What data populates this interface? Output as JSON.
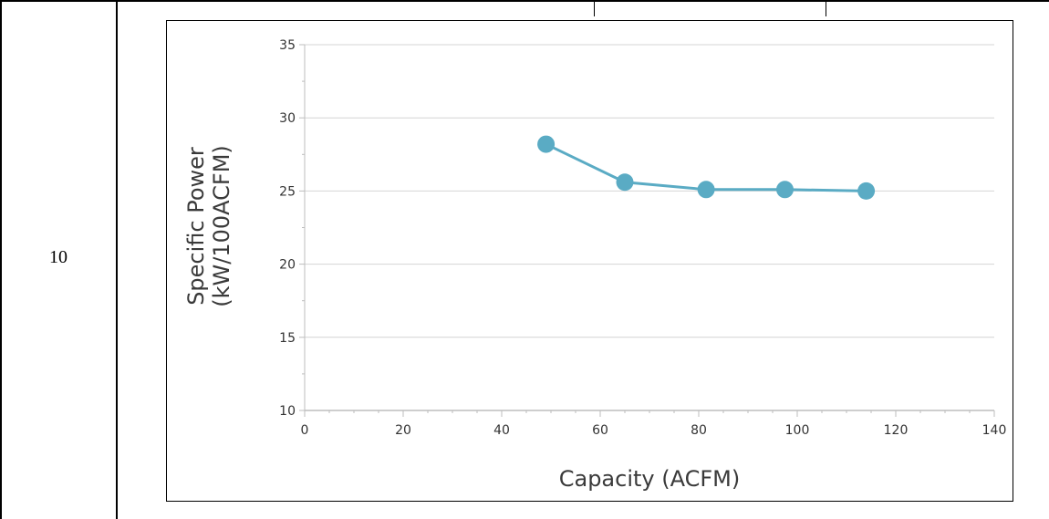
{
  "table": {
    "row_label": "10"
  },
  "colors": {
    "series": "#5aabc4",
    "grid": "#d4d4d4",
    "axis": "#bdbdbd"
  },
  "chart_data": {
    "type": "line",
    "title": "",
    "xlabel": "Capacity (ACFM)",
    "ylabel_lines": [
      "Specific Power",
      "(kW/100ACFM)"
    ],
    "xlim": [
      0,
      140
    ],
    "ylim": [
      10,
      35
    ],
    "x_ticks": [
      0,
      20,
      40,
      60,
      80,
      100,
      120,
      140
    ],
    "y_ticks": [
      10,
      15,
      20,
      25,
      30,
      35
    ],
    "grid": "horizontal",
    "legend": "none",
    "series": [
      {
        "x": [
          49,
          65,
          81.5,
          97.5,
          114
        ],
        "values": [
          28.2,
          25.6,
          25.1,
          25.1,
          25.0
        ]
      }
    ]
  }
}
